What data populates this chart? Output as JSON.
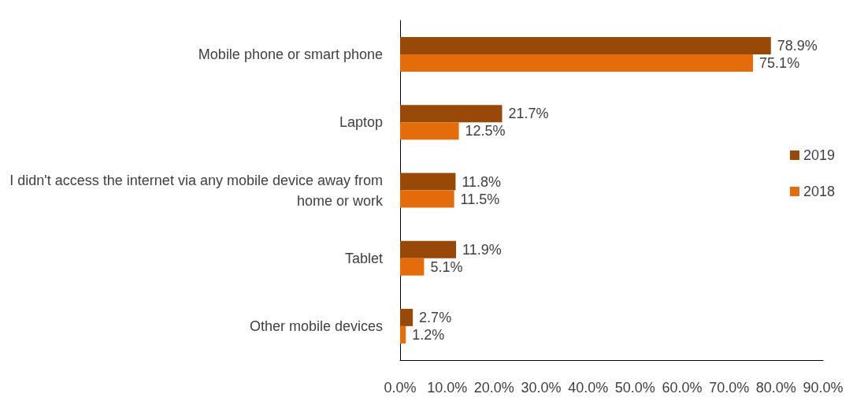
{
  "chart_data": {
    "type": "bar",
    "orientation": "horizontal",
    "categories": [
      "Mobile phone or smart phone",
      "Laptop",
      "I didn't access the internet via any mobile device away from home or work",
      "Tablet",
      "Other mobile devices"
    ],
    "series": [
      {
        "name": "2019",
        "color": "#984807",
        "values": [
          78.9,
          21.7,
          11.8,
          11.9,
          2.7
        ],
        "value_labels": [
          "78.9%",
          "21.7%",
          "11.8%",
          "11.9%",
          "2.7%"
        ]
      },
      {
        "name": "2018",
        "color": "#e46c0a",
        "values": [
          75.1,
          12.5,
          11.5,
          5.1,
          1.2
        ],
        "value_labels": [
          "75.1%",
          "12.5%",
          "11.5%",
          "5.1%",
          "1.2%"
        ]
      }
    ],
    "xlim": [
      0,
      90
    ],
    "xticks": [
      {
        "value": 0,
        "label": "0.0%"
      },
      {
        "value": 10,
        "label": "10.0%"
      },
      {
        "value": 20,
        "label": "20.0%"
      },
      {
        "value": 30,
        "label": "30.0%"
      },
      {
        "value": 40,
        "label": "40.0%"
      },
      {
        "value": 50,
        "label": "50.0%"
      },
      {
        "value": 60,
        "label": "60.0%"
      },
      {
        "value": 70,
        "label": "70.0%"
      },
      {
        "value": 80,
        "label": "80.0%"
      },
      {
        "value": 90,
        "label": "90.0%"
      }
    ],
    "grid": false,
    "legend": "right"
  }
}
